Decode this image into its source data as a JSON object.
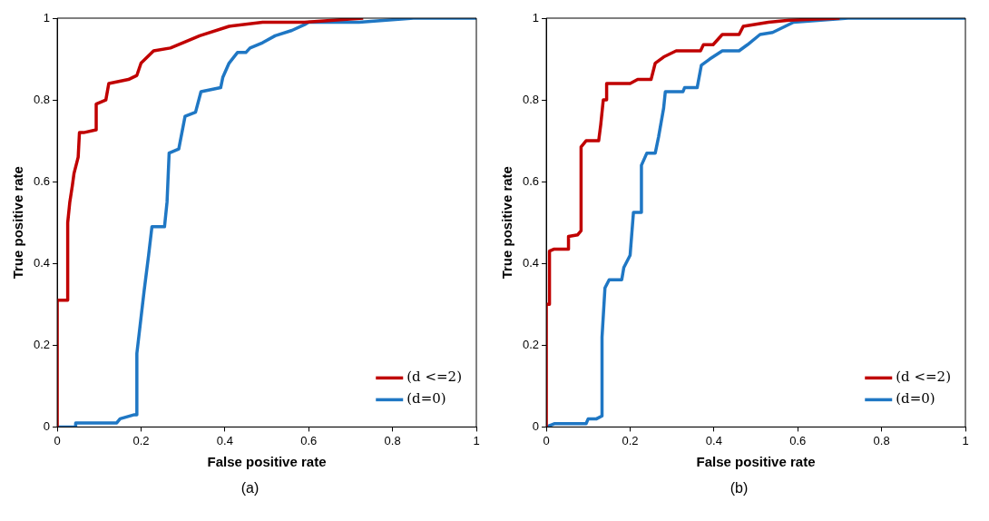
{
  "chart_data": [
    {
      "type": "line",
      "xlabel": "False positive rate",
      "ylabel": "True positive rate",
      "annotations": [
        "(a)"
      ],
      "xlim": [
        0,
        1
      ],
      "ylim": [
        0,
        1
      ],
      "xticks": [
        0,
        0.2,
        0.4,
        0.6,
        0.8,
        1
      ],
      "yticks": [
        0,
        0.2,
        0.4,
        0.6,
        0.8,
        1
      ],
      "grid": false,
      "legend": "bottom right",
      "marker": "none",
      "line_style": "solid",
      "series": [
        {
          "name": "(d <=2)",
          "color": "#c00000",
          "x": [
            0,
            0,
            0.025,
            0.025,
            0.03,
            0.036,
            0.04,
            0.05,
            0.053,
            0.063,
            0.093,
            0.093,
            0.116,
            0.123,
            0.17,
            0.19,
            0.2,
            0.23,
            0.27,
            0.3,
            0.34,
            0.41,
            0.49,
            0.59,
            0.73
          ],
          "values": [
            0,
            0.31,
            0.31,
            0.5,
            0.55,
            0.59,
            0.62,
            0.66,
            0.72,
            0.72,
            0.727,
            0.79,
            0.8,
            0.84,
            0.85,
            0.86,
            0.89,
            0.92,
            0.927,
            0.94,
            0.957,
            0.98,
            0.99,
            0.99,
            1
          ]
        },
        {
          "name": "(d=0)",
          "color": "#1f77c4",
          "x": [
            0,
            0.044,
            0.044,
            0.142,
            0.15,
            0.184,
            0.19,
            0.19,
            0.207,
            0.218,
            0.226,
            0.256,
            0.262,
            0.267,
            0.29,
            0.305,
            0.33,
            0.343,
            0.39,
            0.395,
            0.41,
            0.43,
            0.45,
            0.46,
            0.49,
            0.52,
            0.56,
            0.59,
            0.6,
            0.72,
            0.85,
            1
          ],
          "values": [
            0,
            0,
            0.01,
            0.01,
            0.02,
            0.03,
            0.03,
            0.18,
            0.33,
            0.42,
            0.49,
            0.49,
            0.55,
            0.67,
            0.68,
            0.76,
            0.77,
            0.82,
            0.83,
            0.855,
            0.89,
            0.916,
            0.916,
            0.927,
            0.94,
            0.957,
            0.97,
            0.984,
            0.99,
            0.99,
            1,
            1
          ]
        }
      ]
    },
    {
      "type": "line",
      "xlabel": "False positive rate",
      "ylabel": "True positive rate",
      "annotations": [
        "(b)"
      ],
      "xlim": [
        0,
        1
      ],
      "ylim": [
        0,
        1
      ],
      "xticks": [
        0,
        0.2,
        0.4,
        0.6,
        0.8,
        1
      ],
      "yticks": [
        0,
        0.2,
        0.4,
        0.6,
        0.8,
        1
      ],
      "grid": false,
      "legend": "bottom right",
      "marker": "none",
      "line_style": "solid",
      "series": [
        {
          "name": "(d <=2)",
          "color": "#c00000",
          "x": [
            0,
            0,
            0.0076,
            0.0076,
            0.019,
            0.053,
            0.053,
            0.075,
            0.083,
            0.083,
            0.095,
            0.125,
            0.13,
            0.136,
            0.144,
            0.144,
            0.2,
            0.218,
            0.25,
            0.26,
            0.28,
            0.31,
            0.368,
            0.375,
            0.398,
            0.42,
            0.46,
            0.47,
            0.53,
            0.58,
            0.7
          ],
          "values": [
            0,
            0.3,
            0.3,
            0.43,
            0.435,
            0.435,
            0.466,
            0.47,
            0.48,
            0.685,
            0.7,
            0.7,
            0.74,
            0.8,
            0.8,
            0.84,
            0.84,
            0.85,
            0.85,
            0.89,
            0.905,
            0.92,
            0.92,
            0.935,
            0.935,
            0.96,
            0.96,
            0.98,
            0.99,
            0.995,
            1
          ]
        },
        {
          "name": "(d=0)",
          "color": "#1f77c4",
          "x": [
            0,
            0.019,
            0.095,
            0.1,
            0.12,
            0.133,
            0.133,
            0.14,
            0.15,
            0.18,
            0.185,
            0.2,
            0.208,
            0.227,
            0.227,
            0.24,
            0.26,
            0.268,
            0.28,
            0.284,
            0.326,
            0.33,
            0.36,
            0.37,
            0.39,
            0.42,
            0.46,
            0.48,
            0.51,
            0.54,
            0.57,
            0.59,
            0.72,
            1
          ],
          "values": [
            0,
            0.008,
            0.008,
            0.02,
            0.02,
            0.027,
            0.22,
            0.34,
            0.36,
            0.36,
            0.39,
            0.42,
            0.525,
            0.525,
            0.64,
            0.67,
            0.67,
            0.71,
            0.78,
            0.82,
            0.82,
            0.83,
            0.83,
            0.885,
            0.9,
            0.92,
            0.92,
            0.935,
            0.96,
            0.965,
            0.98,
            0.99,
            1,
            1
          ]
        }
      ]
    }
  ]
}
